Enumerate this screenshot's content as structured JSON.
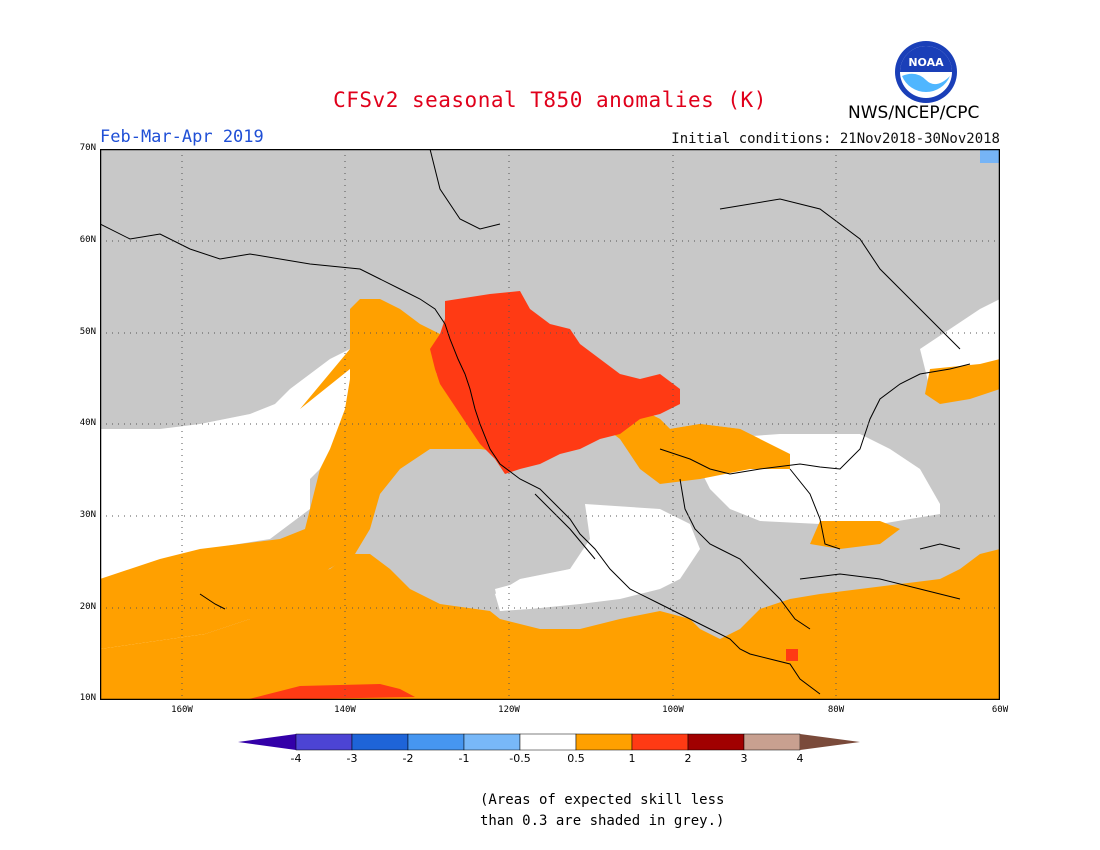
{
  "title": "CFSv2 seasonal T850 anomalies (K)",
  "season": "Feb-Mar-Apr 2019",
  "initial_conditions": "Initial conditions: 21Nov2018-30Nov2018",
  "agency": "NWS/NCEP/CPC",
  "logo_text": "NOAA",
  "map": {
    "extent": {
      "lon_min": -170,
      "lon_max": -60,
      "lat_min": 10,
      "lat_max": 70
    },
    "lat_labels": [
      "70N",
      "60N",
      "50N",
      "40N",
      "30N",
      "20N",
      "10N"
    ],
    "lon_labels": [
      "160W",
      "140W",
      "120W",
      "100W",
      "80W",
      "60W"
    ],
    "colors": {
      "no_skill_grey": "#c8c8c8",
      "near_normal": "#ffffff",
      "warm_0_5_to_1": "#ffa000",
      "warm_1_to_2": "#ff3a14",
      "cool_minus_1_to_minus_0_5": "#76b4f6"
    }
  },
  "colorbar": {
    "labels": [
      "-4",
      "-3",
      "-2",
      "-1",
      "-0.5",
      "0.5",
      "1",
      "2",
      "3",
      "4"
    ],
    "colors": [
      "#3300a8",
      "#4c44d4",
      "#1e64d8",
      "#4696f0",
      "#78b8f8",
      "#ffffff",
      "#ffa000",
      "#ff3a14",
      "#a00000",
      "#c8a090",
      "#7a4a3a"
    ]
  },
  "note_lines": [
    "(Areas of expected skill less",
    "than 0.3 are shaded in grey.)"
  ]
}
